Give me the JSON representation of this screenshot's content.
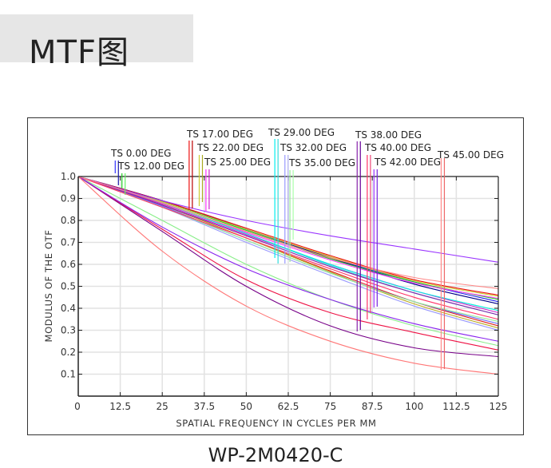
{
  "header": {
    "title": "MTF图"
  },
  "caption": "WP-2M0420-C",
  "chart_data": {
    "type": "line",
    "xlabel": "SPATIAL FREQUENCY IN CYCLES PER MM",
    "ylabel": "MODULUS OF THE OTF",
    "xlim": [
      0,
      125
    ],
    "ylim": [
      0,
      1.0
    ],
    "xticks": [
      "0",
      "12.5",
      "25",
      "37.5",
      "50",
      "62.5",
      "75",
      "87.5",
      "100",
      "112.5",
      "125"
    ],
    "yticks": [
      "0.1",
      "0.2",
      "0.3",
      "0.4",
      "0.5",
      "0.6",
      "0.7",
      "0.8",
      "0.9",
      "1.0"
    ],
    "grid": true,
    "field_labels": [
      {
        "text": "TS 0.00  DEG",
        "x": 11,
        "colors": [
          "#3333ff",
          "#1a1aaa"
        ]
      },
      {
        "text": "TS 12.00  DEG",
        "x": 13,
        "colors": [
          "#22cc22",
          "#66ee66"
        ]
      },
      {
        "text": "TS 17.00  DEG",
        "x": 33,
        "colors": [
          "#ee1111",
          "#bb0000"
        ]
      },
      {
        "text": "TS 22.00  DEG",
        "x": 36,
        "colors": [
          "#cccc33",
          "#aaaa22"
        ]
      },
      {
        "text": "TS 25.00  DEG",
        "x": 38,
        "colors": [
          "#ff33ff",
          "#cc22cc"
        ]
      },
      {
        "text": "TS 29.00  DEG",
        "x": 58.5,
        "colors": [
          "#00eeee",
          "#33dddd"
        ]
      },
      {
        "text": "TS 32.00  DEG",
        "x": 61.5,
        "colors": [
          "#9999ff",
          "#aaaaee"
        ]
      },
      {
        "text": "TS 35.00  DEG",
        "x": 63,
        "colors": [
          "#99ee99",
          "#aaffaa"
        ]
      },
      {
        "text": "TS 38.00  DEG",
        "x": 83,
        "colors": [
          "#8822aa",
          "#660099"
        ]
      },
      {
        "text": "TS 40.00  DEG",
        "x": 86,
        "colors": [
          "#ff3366",
          "#ee4477"
        ]
      },
      {
        "text": "TS 42.00  DEG",
        "x": 88,
        "colors": [
          "#9933ff",
          "#7722dd"
        ]
      },
      {
        "text": "TS 45.00  DEG",
        "x": 108,
        "colors": [
          "#ff8888",
          "#ee6666"
        ]
      }
    ],
    "series": [
      {
        "name": "TS 0.00 DEG T",
        "color": "#2222ee",
        "values": [
          [
            0,
            1.0
          ],
          [
            25,
            0.89
          ],
          [
            50,
            0.76
          ],
          [
            75,
            0.63
          ],
          [
            100,
            0.52
          ],
          [
            125,
            0.43
          ]
        ]
      },
      {
        "name": "TS 0.00 DEG S",
        "color": "#000088",
        "values": [
          [
            0,
            1.0
          ],
          [
            25,
            0.89
          ],
          [
            50,
            0.76
          ],
          [
            75,
            0.63
          ],
          [
            100,
            0.51
          ],
          [
            125,
            0.42
          ]
        ]
      },
      {
        "name": "TS 12.00 DEG T",
        "color": "#22cc22",
        "values": [
          [
            0,
            1.0
          ],
          [
            25,
            0.885
          ],
          [
            50,
            0.755
          ],
          [
            75,
            0.625
          ],
          [
            100,
            0.52
          ],
          [
            125,
            0.44
          ]
        ]
      },
      {
        "name": "TS 12.00 DEG S",
        "color": "#66ee66",
        "values": [
          [
            0,
            1.0
          ],
          [
            25,
            0.88
          ],
          [
            50,
            0.74
          ],
          [
            75,
            0.6
          ],
          [
            100,
            0.48
          ],
          [
            125,
            0.39
          ]
        ]
      },
      {
        "name": "TS 17.00 DEG T",
        "color": "#ee1111",
        "values": [
          [
            0,
            1.0
          ],
          [
            25,
            0.89
          ],
          [
            50,
            0.765
          ],
          [
            75,
            0.64
          ],
          [
            100,
            0.53
          ],
          [
            125,
            0.46
          ]
        ]
      },
      {
        "name": "TS 17.00 DEG S",
        "color": "#dd2222",
        "values": [
          [
            0,
            1.0
          ],
          [
            25,
            0.87
          ],
          [
            50,
            0.72
          ],
          [
            75,
            0.57
          ],
          [
            100,
            0.43
          ],
          [
            125,
            0.32
          ]
        ]
      },
      {
        "name": "TS 22.00 DEG T",
        "color": "#cccc33",
        "values": [
          [
            0,
            1.0
          ],
          [
            25,
            0.885
          ],
          [
            50,
            0.76
          ],
          [
            75,
            0.635
          ],
          [
            100,
            0.525
          ],
          [
            125,
            0.455
          ]
        ]
      },
      {
        "name": "TS 22.00 DEG S",
        "color": "#bbaa22",
        "values": [
          [
            0,
            1.0
          ],
          [
            25,
            0.87
          ],
          [
            50,
            0.72
          ],
          [
            75,
            0.565
          ],
          [
            100,
            0.42
          ],
          [
            125,
            0.31
          ]
        ]
      },
      {
        "name": "TS 25.00 DEG T",
        "color": "#ff33ff",
        "values": [
          [
            0,
            1.0
          ],
          [
            25,
            0.88
          ],
          [
            50,
            0.745
          ],
          [
            75,
            0.62
          ],
          [
            100,
            0.515
          ],
          [
            125,
            0.445
          ]
        ]
      },
      {
        "name": "TS 25.00 DEG S",
        "color": "#cc22cc",
        "values": [
          [
            0,
            1.0
          ],
          [
            25,
            0.875
          ],
          [
            50,
            0.735
          ],
          [
            75,
            0.6
          ],
          [
            100,
            0.48
          ],
          [
            125,
            0.38
          ]
        ]
      },
      {
        "name": "TS 29.00 DEG T",
        "color": "#00eeee",
        "values": [
          [
            0,
            1.0
          ],
          [
            25,
            0.88
          ],
          [
            50,
            0.74
          ],
          [
            75,
            0.6
          ],
          [
            100,
            0.48
          ],
          [
            125,
            0.39
          ]
        ]
      },
      {
        "name": "TS 29.00 DEG S",
        "color": "#33dddd",
        "values": [
          [
            0,
            1.0
          ],
          [
            25,
            0.88
          ],
          [
            50,
            0.74
          ],
          [
            75,
            0.595
          ],
          [
            100,
            0.47
          ],
          [
            125,
            0.37
          ]
        ]
      },
      {
        "name": "TS 32.00 DEG T",
        "color": "#9999ff",
        "values": [
          [
            0,
            1.0
          ],
          [
            25,
            0.86
          ],
          [
            50,
            0.7
          ],
          [
            75,
            0.55
          ],
          [
            100,
            0.41
          ],
          [
            125,
            0.3
          ]
        ]
      },
      {
        "name": "TS 32.00 DEG S",
        "color": "#6666ff",
        "values": [
          [
            0,
            1.0
          ],
          [
            25,
            0.865
          ],
          [
            50,
            0.71
          ],
          [
            75,
            0.56
          ],
          [
            100,
            0.43
          ],
          [
            125,
            0.33
          ]
        ]
      },
      {
        "name": "TS 35.00 DEG T",
        "color": "#99ee99",
        "values": [
          [
            0,
            1.0
          ],
          [
            25,
            0.86
          ],
          [
            50,
            0.71
          ],
          [
            75,
            0.56
          ],
          [
            100,
            0.43
          ],
          [
            125,
            0.34
          ]
        ]
      },
      {
        "name": "TS 35.00 DEG S",
        "color": "#88ee88",
        "values": [
          [
            0,
            1.0
          ],
          [
            25,
            0.8
          ],
          [
            50,
            0.6
          ],
          [
            75,
            0.44
          ],
          [
            100,
            0.32
          ],
          [
            125,
            0.23
          ]
        ]
      },
      {
        "name": "TS 38.00 DEG T",
        "color": "#8822aa",
        "values": [
          [
            0,
            1.0
          ],
          [
            25,
            0.87
          ],
          [
            50,
            0.73
          ],
          [
            75,
            0.59
          ],
          [
            100,
            0.47
          ],
          [
            125,
            0.37
          ]
        ]
      },
      {
        "name": "TS 38.00 DEG S",
        "color": "#770088",
        "values": [
          [
            0,
            1.0
          ],
          [
            25,
            0.75
          ],
          [
            50,
            0.5
          ],
          [
            75,
            0.32
          ],
          [
            100,
            0.22
          ],
          [
            125,
            0.18
          ]
        ]
      },
      {
        "name": "TS 40.00 DEG T",
        "color": "#ff3366",
        "values": [
          [
            0,
            1.0
          ],
          [
            25,
            0.86
          ],
          [
            50,
            0.72
          ],
          [
            75,
            0.58
          ],
          [
            100,
            0.45
          ],
          [
            125,
            0.35
          ]
        ]
      },
      {
        "name": "TS 40.00 DEG S",
        "color": "#ee1144",
        "values": [
          [
            0,
            1.0
          ],
          [
            25,
            0.76
          ],
          [
            50,
            0.53
          ],
          [
            75,
            0.38
          ],
          [
            100,
            0.29
          ],
          [
            125,
            0.21
          ]
        ]
      },
      {
        "name": "TS 42.00 DEG T",
        "color": "#9933ff",
        "values": [
          [
            0,
            1.0
          ],
          [
            25,
            0.89
          ],
          [
            50,
            0.8
          ],
          [
            75,
            0.73
          ],
          [
            100,
            0.67
          ],
          [
            125,
            0.61
          ]
        ]
      },
      {
        "name": "TS 42.00 DEG S",
        "color": "#8822ee",
        "values": [
          [
            0,
            1.0
          ],
          [
            25,
            0.77
          ],
          [
            50,
            0.58
          ],
          [
            75,
            0.44
          ],
          [
            100,
            0.33
          ],
          [
            125,
            0.25
          ]
        ]
      },
      {
        "name": "TS 45.00 DEG T",
        "color": "#ff8888",
        "values": [
          [
            0,
            1.0
          ],
          [
            25,
            0.88
          ],
          [
            50,
            0.75
          ],
          [
            75,
            0.63
          ],
          [
            100,
            0.54
          ],
          [
            125,
            0.49
          ]
        ]
      },
      {
        "name": "TS 45.00 DEG S",
        "color": "#ff7777",
        "values": [
          [
            0,
            1.0
          ],
          [
            25,
            0.66
          ],
          [
            50,
            0.41
          ],
          [
            75,
            0.25
          ],
          [
            100,
            0.15
          ],
          [
            125,
            0.1
          ]
        ]
      }
    ]
  }
}
